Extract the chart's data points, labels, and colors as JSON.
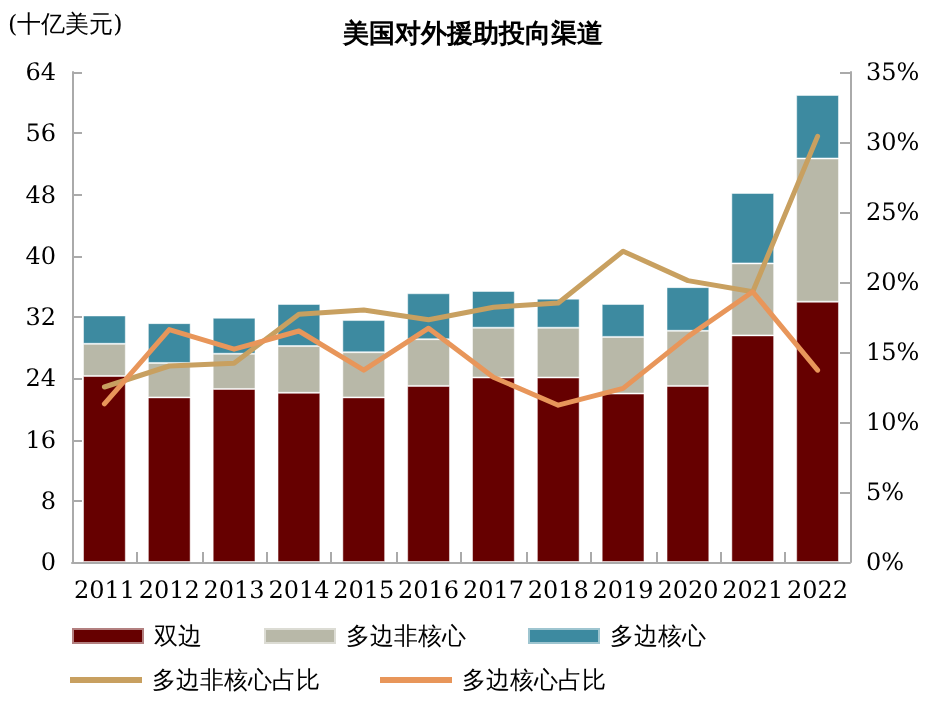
{
  "chart_data": {
    "type": "bar",
    "title": "美国对外援助投向渠道",
    "ylabel": "(十亿美元)",
    "categories": [
      "2011",
      "2012",
      "2013",
      "2014",
      "2015",
      "2016",
      "2017",
      "2018",
      "2019",
      "2020",
      "2021",
      "2022"
    ],
    "stacked": true,
    "series": [
      {
        "name": "双边",
        "color": "#660000",
        "values": [
          24.3,
          21.5,
          22.6,
          22.1,
          21.5,
          23.0,
          24.1,
          24.1,
          22.0,
          23.0,
          29.6,
          34.0
        ]
      },
      {
        "name": "多边非核心",
        "color": "#b8b8a8",
        "values": [
          4.2,
          4.5,
          4.6,
          6.1,
          5.9,
          6.1,
          6.5,
          6.5,
          7.4,
          7.2,
          9.4,
          18.7
        ]
      },
      {
        "name": "多边核心",
        "color": "#3d8aa0",
        "values": [
          3.7,
          5.2,
          4.7,
          5.5,
          4.2,
          6.0,
          4.8,
          3.8,
          4.3,
          5.7,
          9.2,
          8.3
        ]
      },
      {
        "name": "多边非核心占比",
        "type": "line",
        "axis": "y2",
        "color": "#c8a060",
        "values": [
          12.5,
          14.0,
          14.2,
          17.7,
          18.0,
          17.3,
          18.2,
          18.5,
          22.2,
          20.1,
          19.3,
          30.4
        ]
      },
      {
        "name": "多边核心占比",
        "type": "line",
        "axis": "y2",
        "color": "#e8965a",
        "values": [
          11.3,
          16.6,
          15.2,
          16.5,
          13.7,
          16.7,
          13.2,
          11.2,
          12.4,
          16.1,
          19.3,
          13.7
        ]
      }
    ],
    "ylim": [
      0,
      64
    ],
    "yticks": [
      0,
      8,
      16,
      24,
      32,
      40,
      48,
      56,
      64
    ],
    "y2lim": [
      0,
      35
    ],
    "y2ticks": [
      {
        "value": 0,
        "label": "0%"
      },
      {
        "value": 5,
        "label": "5%"
      },
      {
        "value": 10,
        "label": "10%"
      },
      {
        "value": 15,
        "label": "15%"
      },
      {
        "value": 20,
        "label": "20%"
      },
      {
        "value": 25,
        "label": "25%"
      },
      {
        "value": 30,
        "label": "30%"
      },
      {
        "value": 35,
        "label": "35%"
      }
    ],
    "grid": false,
    "legend": "bottom",
    "marker": "none"
  }
}
